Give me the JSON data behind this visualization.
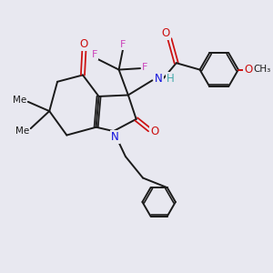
{
  "bg_color": "#e8e8f0",
  "bond_color": "#1a1a1a",
  "N_color": "#1010dd",
  "O_color": "#cc1010",
  "F_color": "#cc44bb",
  "H_color": "#44aaaa",
  "figsize": [
    3.0,
    3.0
  ],
  "dpi": 100,
  "xlim": [
    0,
    10
  ],
  "ylim": [
    0,
    10
  ]
}
